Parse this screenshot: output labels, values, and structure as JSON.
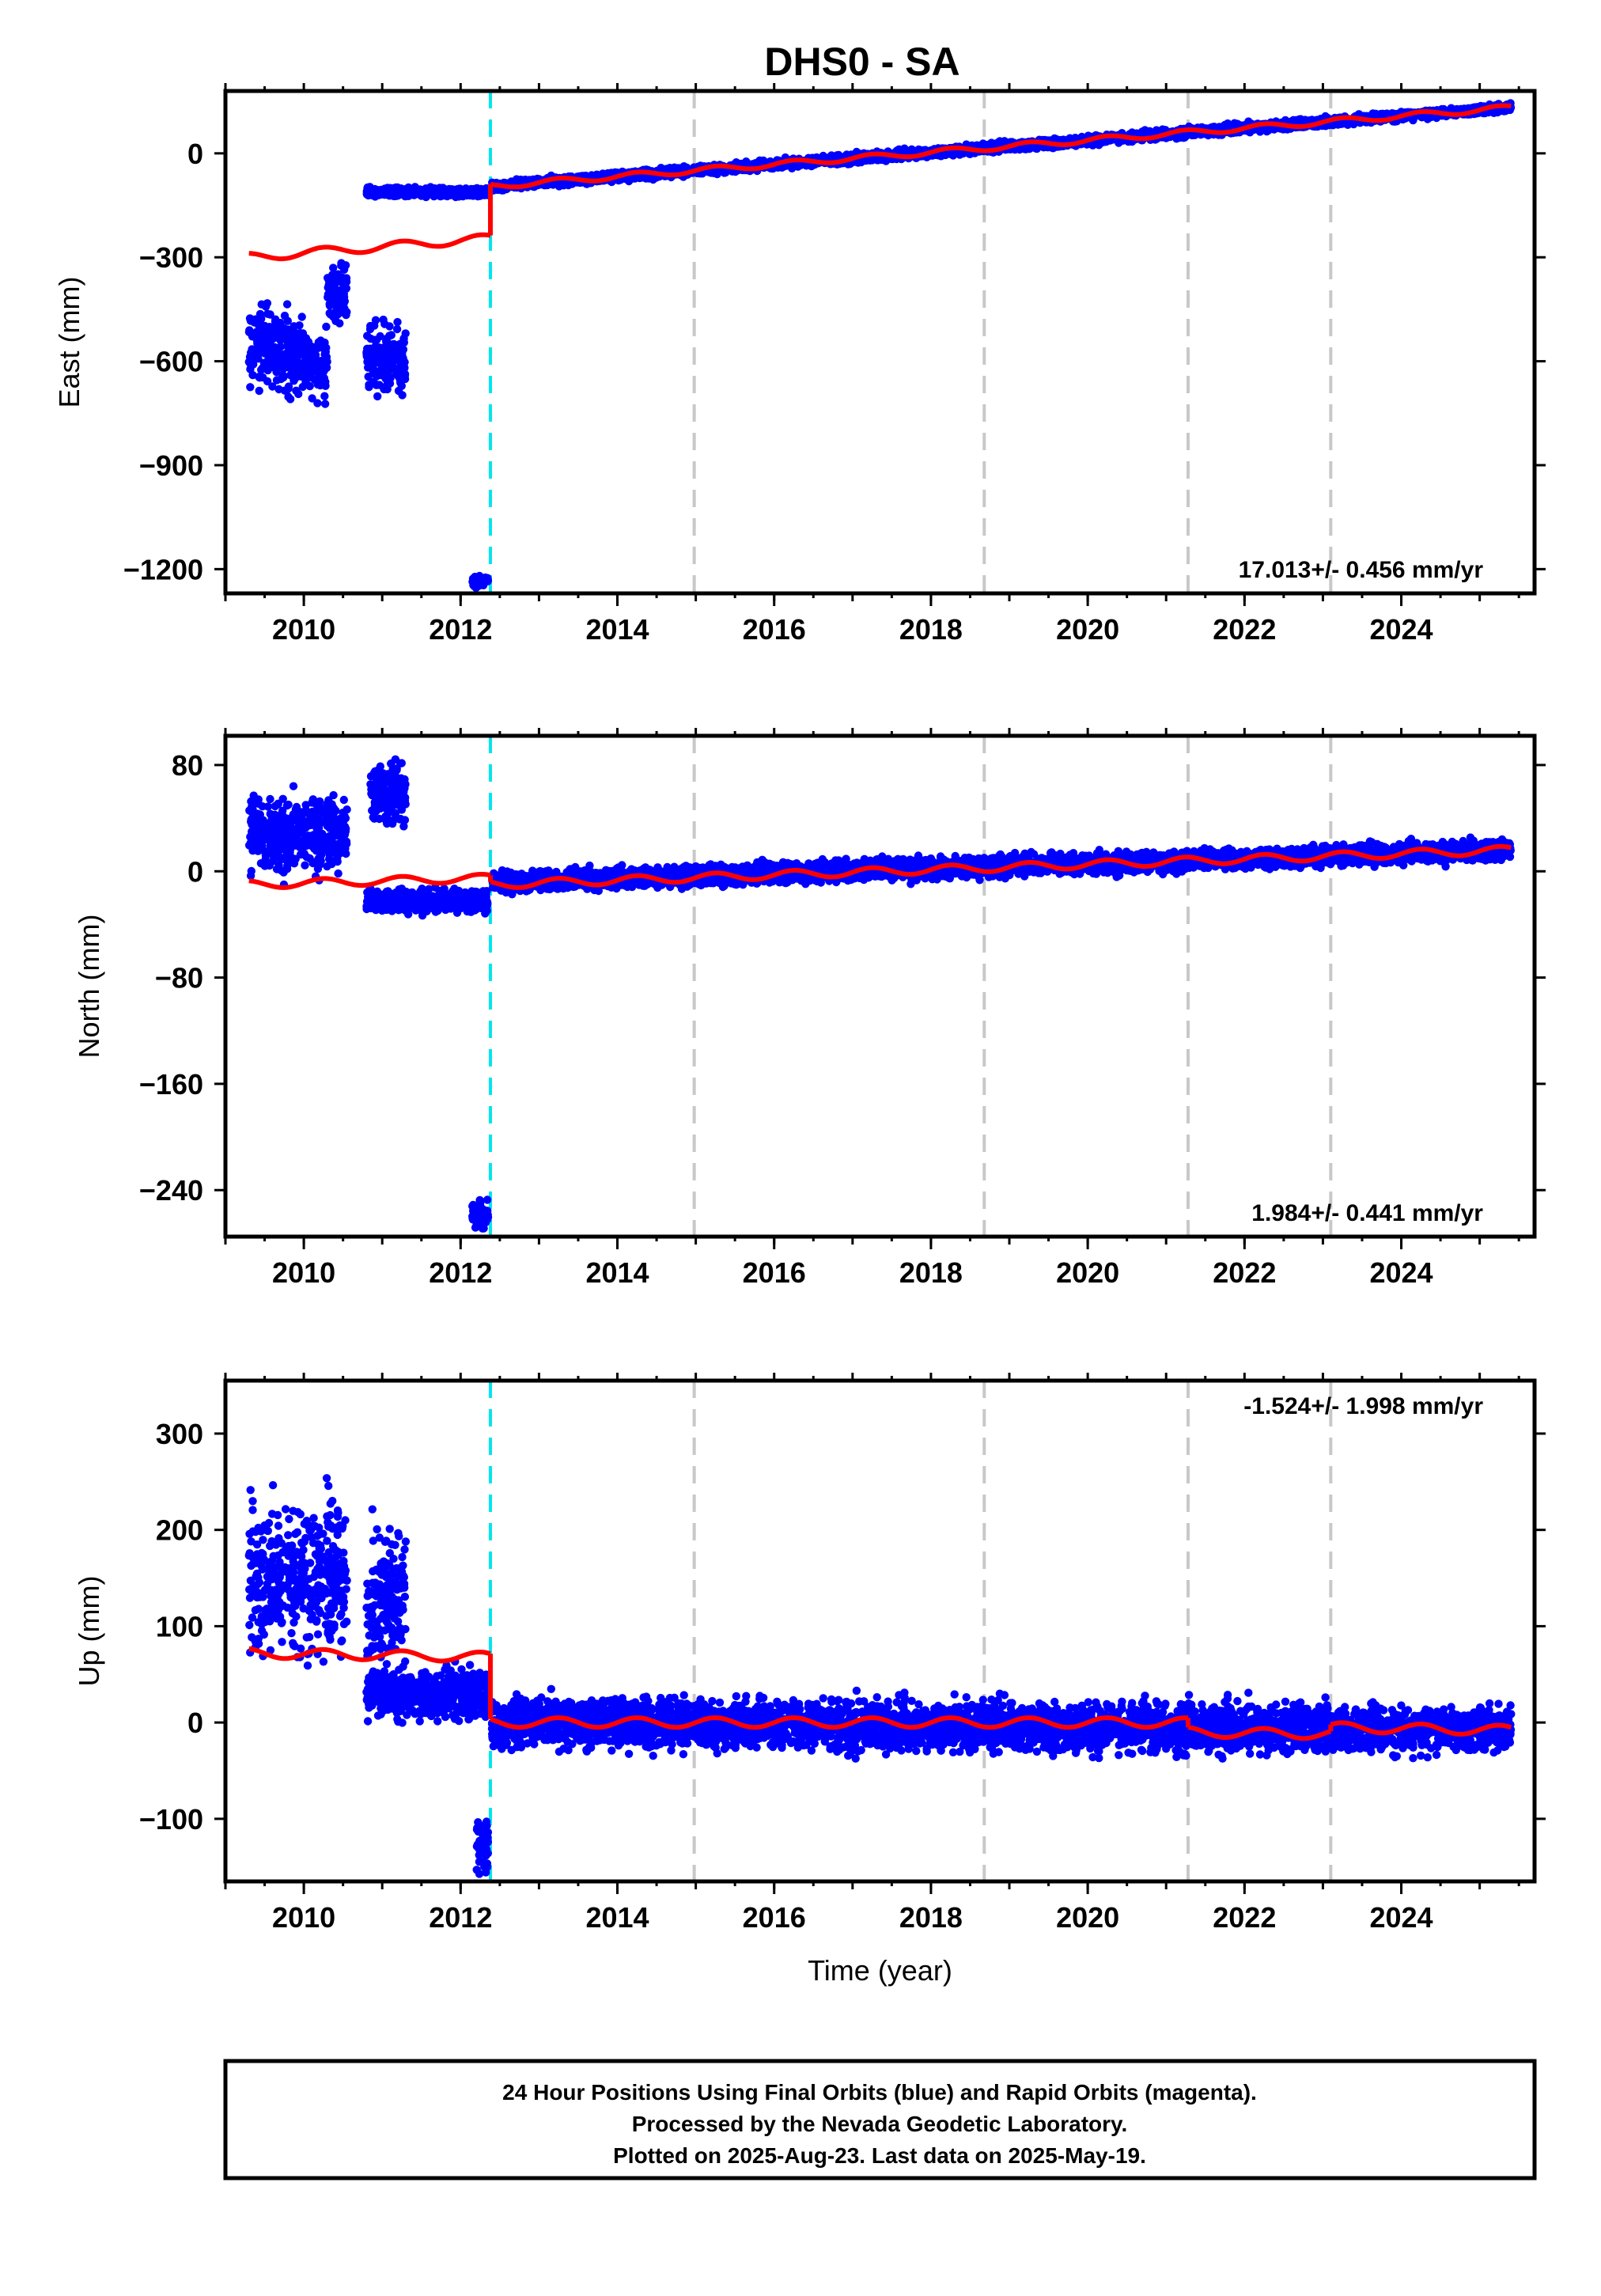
{
  "title": "DHS0 - SA",
  "footer": {
    "line1": "24 Hour Positions Using Final Orbits (blue) and Rapid Orbits (magenta).",
    "line2": "Processed by the Nevada Geodetic Laboratory.",
    "line3": "Plotted on 2025-Aug-23. Last data on 2025-May-19."
  },
  "colors": {
    "points": "#0000ff",
    "model": "#ff0000",
    "equipment_change": "#00e5ee",
    "other_event": "#c8c8c8"
  },
  "chart_data": [
    {
      "type": "scatter",
      "ylabel": "East (mm)",
      "xlabel": "",
      "xlim": [
        2009.0,
        2025.7
      ],
      "ylim": [
        -1270,
        180
      ],
      "xticks": [
        "2010",
        "2012",
        "2014",
        "2016",
        "2018",
        "2020",
        "2022",
        "2024"
      ],
      "yticks": [
        "0",
        "−300",
        "−600",
        "−900",
        "−1200"
      ],
      "rate_label": "17.013+/- 0.456 mm/yr",
      "event_lines": [
        {
          "x": 2012.38,
          "kind": "equipment_change"
        },
        {
          "x": 2014.98,
          "kind": "other_event"
        },
        {
          "x": 2018.68,
          "kind": "other_event"
        },
        {
          "x": 2021.28,
          "kind": "other_event"
        },
        {
          "x": 2023.1,
          "kind": "other_event"
        }
      ],
      "point_clusters": [
        {
          "x_start": 2009.3,
          "x_end": 2009.8,
          "y_center": -560,
          "y_spread": 90
        },
        {
          "x_start": 2009.8,
          "x_end": 2010.3,
          "y_center": -600,
          "y_spread": 80
        },
        {
          "x_start": 2010.3,
          "x_end": 2010.55,
          "y_center": -400,
          "y_spread": 70
        },
        {
          "x_start": 2010.8,
          "x_end": 2011.3,
          "y_center": -600,
          "y_spread": 80
        },
        {
          "x_start": 2010.8,
          "x_end": 2012.35,
          "y_center": -112,
          "y_spread": 10
        },
        {
          "x_start": 2012.15,
          "x_end": 2012.35,
          "y_center": -1235,
          "y_spread": 12
        },
        {
          "x_start": 2012.4,
          "x_end": 2025.4,
          "y_start": -95,
          "y_end": 132,
          "y_spread": 10
        }
      ],
      "model_segments": [
        {
          "x_start": 2009.3,
          "x_end": 2012.38,
          "y_start": -300,
          "y_end": -245,
          "seasonal_amp": 12
        },
        {
          "x_start": 2012.38,
          "x_end": 2025.4,
          "y_start": -95,
          "y_end": 132,
          "seasonal_amp": 8
        }
      ]
    },
    {
      "type": "scatter",
      "ylabel": "North (mm)",
      "xlabel": "",
      "xlim": [
        2009.0,
        2025.7
      ],
      "ylim": [
        -275,
        102
      ],
      "xticks": [
        "2010",
        "2012",
        "2014",
        "2016",
        "2018",
        "2020",
        "2022",
        "2024"
      ],
      "yticks": [
        "80",
        "0",
        "−80",
        "−160",
        "−240"
      ],
      "rate_label": "1.984+/- 0.441 mm/yr",
      "event_lines": [
        {
          "x": 2012.38,
          "kind": "equipment_change"
        },
        {
          "x": 2014.98,
          "kind": "other_event"
        },
        {
          "x": 2018.68,
          "kind": "other_event"
        },
        {
          "x": 2021.28,
          "kind": "other_event"
        },
        {
          "x": 2023.1,
          "kind": "other_event"
        }
      ],
      "point_clusters": [
        {
          "x_start": 2009.3,
          "x_end": 2010.55,
          "y_center": 28,
          "y_spread": 22
        },
        {
          "x_start": 2010.85,
          "x_end": 2011.3,
          "y_center": 60,
          "y_spread": 20
        },
        {
          "x_start": 2010.8,
          "x_end": 2012.35,
          "y_center": -22,
          "y_spread": 7
        },
        {
          "x_start": 2012.15,
          "x_end": 2012.35,
          "y_center": -258,
          "y_spread": 8
        },
        {
          "x_start": 2012.4,
          "x_end": 2025.4,
          "y_start": -8,
          "y_end": 16,
          "y_spread": 6
        }
      ],
      "model_segments": [
        {
          "x_start": 2009.3,
          "x_end": 2012.38,
          "y_start": -10,
          "y_end": -5,
          "seasonal_amp": 3
        },
        {
          "x_start": 2012.38,
          "x_end": 2025.4,
          "y_start": -10,
          "y_end": 16,
          "seasonal_amp": 3
        }
      ]
    },
    {
      "type": "scatter",
      "ylabel": "Up (mm)",
      "xlabel": "Time (year)",
      "xlim": [
        2009.0,
        2025.7
      ],
      "ylim": [
        -165,
        355
      ],
      "xticks": [
        "2010",
        "2012",
        "2014",
        "2016",
        "2018",
        "2020",
        "2022",
        "2024"
      ],
      "yticks": [
        "300",
        "200",
        "100",
        "0",
        "−100"
      ],
      "rate_label": "-1.524+/- 1.998 mm/yr",
      "event_lines": [
        {
          "x": 2012.38,
          "kind": "equipment_change"
        },
        {
          "x": 2014.98,
          "kind": "other_event"
        },
        {
          "x": 2018.68,
          "kind": "other_event"
        },
        {
          "x": 2021.28,
          "kind": "other_event"
        },
        {
          "x": 2023.1,
          "kind": "other_event"
        }
      ],
      "point_clusters": [
        {
          "x_start": 2009.3,
          "x_end": 2010.55,
          "y_center": 150,
          "y_spread": 60
        },
        {
          "x_start": 2010.8,
          "x_end": 2011.3,
          "y_center": 130,
          "y_spread": 60
        },
        {
          "x_start": 2010.8,
          "x_end": 2012.35,
          "y_center": 30,
          "y_spread": 20
        },
        {
          "x_start": 2012.2,
          "x_end": 2012.35,
          "y_center": -130,
          "y_spread": 25
        },
        {
          "x_start": 2012.4,
          "x_end": 2025.4,
          "y_start": 0,
          "y_end": -8,
          "y_spread": 20
        }
      ],
      "model_segments": [
        {
          "x_start": 2009.3,
          "x_end": 2012.38,
          "y_start": 72,
          "y_end": 68,
          "seasonal_amp": 5
        },
        {
          "x_start": 2012.38,
          "x_end": 2021.28,
          "y_start": 0,
          "y_end": 0,
          "seasonal_amp": 5
        },
        {
          "x_start": 2021.28,
          "x_end": 2023.1,
          "y_start": -10,
          "y_end": -12,
          "seasonal_amp": 5
        },
        {
          "x_start": 2023.1,
          "x_end": 2025.4,
          "y_start": -5,
          "y_end": -8,
          "seasonal_amp": 5
        }
      ]
    }
  ]
}
